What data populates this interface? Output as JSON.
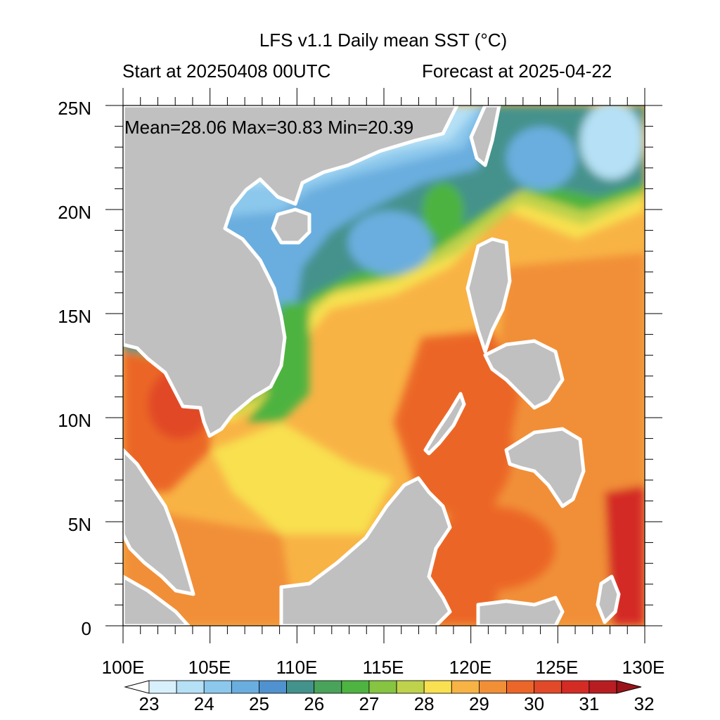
{
  "header": {
    "title": "LFS v1.1 Daily mean SST (°C)",
    "start": "Start at 20250408 00UTC",
    "forecast": "Forecast at 2025-04-22"
  },
  "stats": {
    "text": "Mean=28.06  Max=30.83  Min=20.39"
  },
  "axes": {
    "y_labels": [
      "25N",
      "20N",
      "15N",
      "10N",
      "5N",
      "0"
    ],
    "x_labels": [
      "100E",
      "105E",
      "110E",
      "115E",
      "120E",
      "125E",
      "130E"
    ]
  },
  "colorbar": {
    "labels": [
      "23",
      "24",
      "25",
      "26",
      "27",
      "28",
      "29",
      "30",
      "31",
      "32"
    ],
    "colors": [
      "#ffffff",
      "#d8f0fb",
      "#b5e0f5",
      "#8cc8ec",
      "#6aaedf",
      "#4f92cf",
      "#44928c",
      "#4aa35a",
      "#4db341",
      "#86c441",
      "#bfd24b",
      "#f8e050",
      "#f8b345",
      "#f18f37",
      "#eb6628",
      "#e14928",
      "#d42b25",
      "#b81d22",
      "#9a1318"
    ]
  },
  "colors": {
    "land": "#c0c0c0",
    "coast": "#ffffff"
  }
}
